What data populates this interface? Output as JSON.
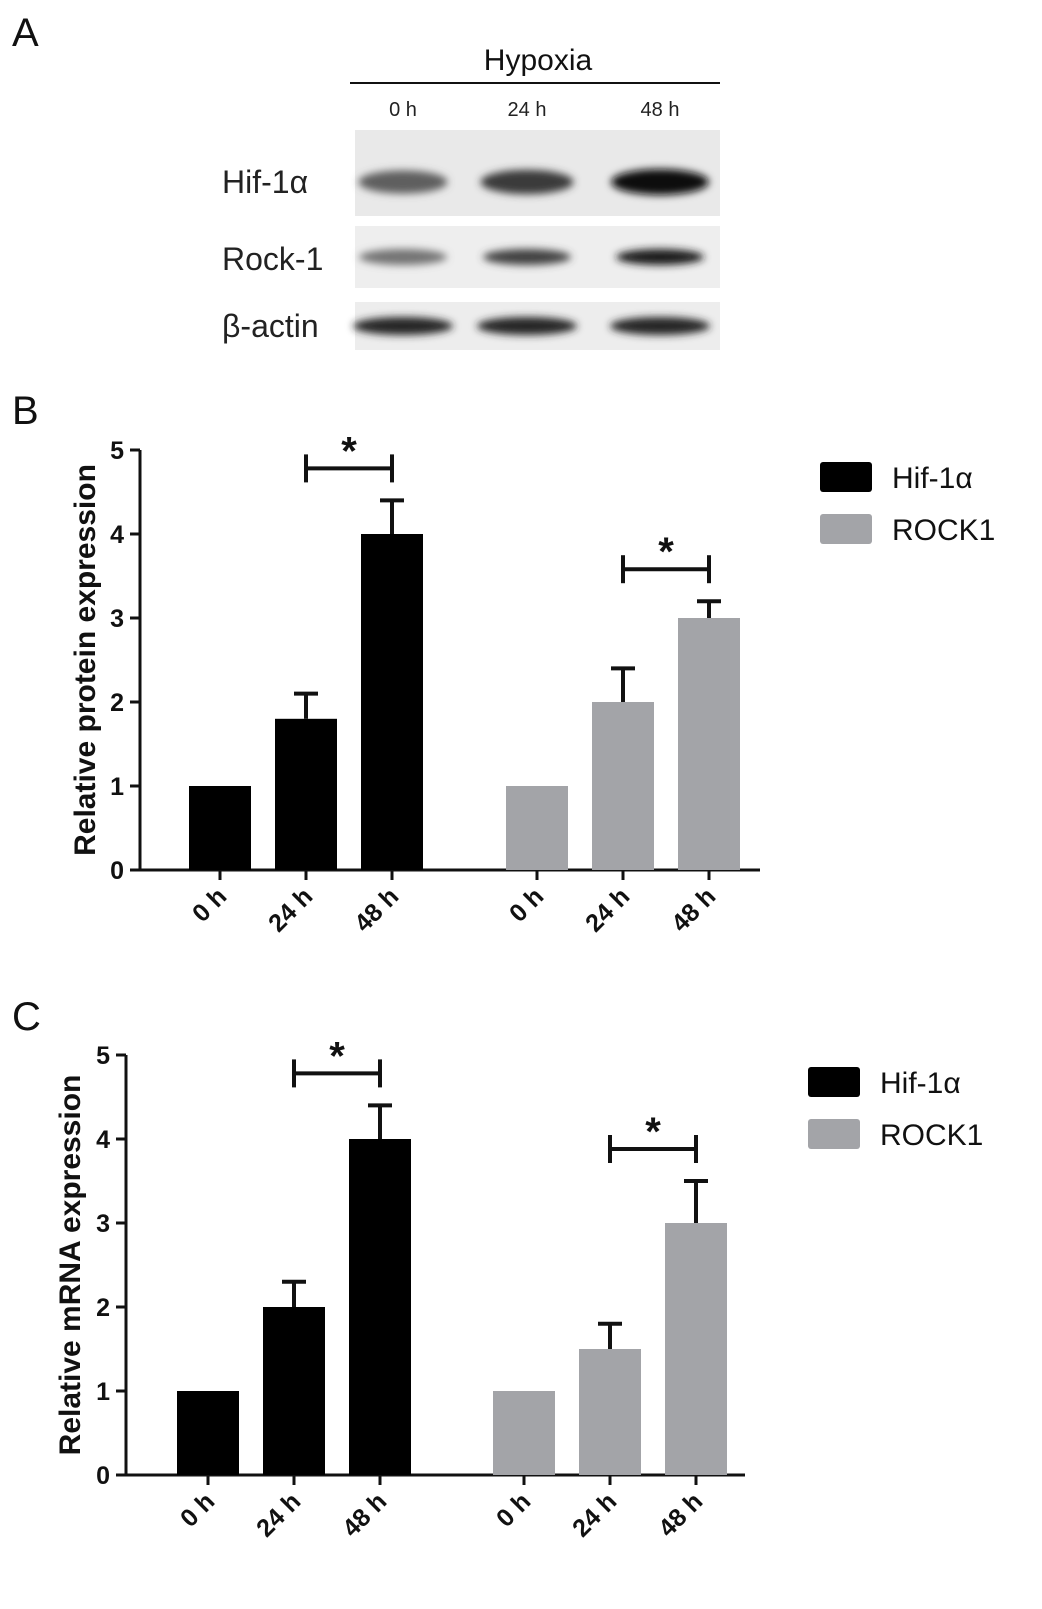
{
  "colors": {
    "hif": "#000000",
    "rock": "#a3a4a8",
    "axis": "#111111"
  },
  "panel_a": {
    "letter": "A",
    "condition": "Hypoxia",
    "columns": [
      "0 h",
      "24 h",
      "48 h"
    ],
    "rows": [
      {
        "label": "Hif-1α",
        "band_intensity": [
          0.55,
          0.75,
          1.0
        ]
      },
      {
        "label": "Rock-1",
        "band_intensity": [
          0.45,
          0.7,
          0.9
        ]
      },
      {
        "label": "β-actin",
        "band_intensity": [
          0.85,
          0.85,
          0.85
        ]
      }
    ]
  },
  "chart_data": [
    {
      "type": "bar",
      "panel": "B",
      "ylabel": "Relative protein expression",
      "ylim": [
        0,
        5
      ],
      "yticks": [
        0,
        1,
        2,
        3,
        4,
        5
      ],
      "categories": [
        "0 h",
        "24 h",
        "48 h"
      ],
      "legend_position": "right",
      "series": [
        {
          "name": "Hif-1α",
          "values": [
            1.0,
            1.8,
            4.0
          ],
          "errors": [
            0,
            0.3,
            0.4
          ]
        },
        {
          "name": "ROCK1",
          "values": [
            1.0,
            2.0,
            3.0
          ],
          "errors": [
            0,
            0.4,
            0.2
          ]
        }
      ],
      "significance": [
        {
          "series": 0,
          "from": 1,
          "to": 2,
          "label": "*"
        },
        {
          "series": 1,
          "from": 1,
          "to": 2,
          "label": "*"
        }
      ]
    },
    {
      "type": "bar",
      "panel": "C",
      "ylabel": "Relative mRNA expression",
      "ylim": [
        0,
        5
      ],
      "yticks": [
        0,
        1,
        2,
        3,
        4,
        5
      ],
      "categories": [
        "0 h",
        "24 h",
        "48 h"
      ],
      "legend_position": "right",
      "series": [
        {
          "name": "Hif-1α",
          "values": [
            1.0,
            2.0,
            4.0
          ],
          "errors": [
            0,
            0.3,
            0.4
          ]
        },
        {
          "name": "ROCK1",
          "values": [
            1.0,
            1.5,
            3.0
          ],
          "errors": [
            0,
            0.3,
            0.5
          ]
        }
      ],
      "significance": [
        {
          "series": 0,
          "from": 1,
          "to": 2,
          "label": "*"
        },
        {
          "series": 1,
          "from": 1,
          "to": 2,
          "label": "*"
        }
      ]
    }
  ]
}
